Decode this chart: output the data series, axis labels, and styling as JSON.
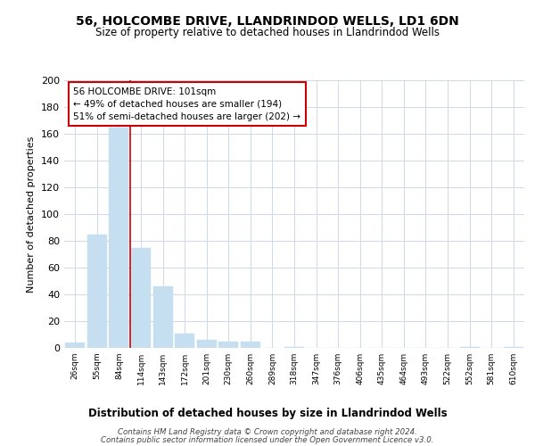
{
  "title": "56, HOLCOMBE DRIVE, LLANDRINDOD WELLS, LD1 6DN",
  "subtitle": "Size of property relative to detached houses in Llandrindod Wells",
  "xlabel": "Distribution of detached houses by size in Llandrindod Wells",
  "ylabel": "Number of detached properties",
  "bar_labels": [
    "26sqm",
    "55sqm",
    "84sqm",
    "114sqm",
    "143sqm",
    "172sqm",
    "201sqm",
    "230sqm",
    "260sqm",
    "289sqm",
    "318sqm",
    "347sqm",
    "376sqm",
    "406sqm",
    "435sqm",
    "464sqm",
    "493sqm",
    "522sqm",
    "552sqm",
    "581sqm",
    "610sqm"
  ],
  "bar_values": [
    4,
    85,
    165,
    75,
    46,
    11,
    6,
    5,
    5,
    0,
    1,
    0,
    0,
    0,
    0,
    0,
    0,
    0,
    1,
    0,
    1
  ],
  "bar_color": "#c5dff0",
  "bar_edge_color": "#c5dff0",
  "vline_x": 2.5,
  "vline_color": "#cc0000",
  "annotation_title": "56 HOLCOMBE DRIVE: 101sqm",
  "annotation_line1": "← 49% of detached houses are smaller (194)",
  "annotation_line2": "51% of semi-detached houses are larger (202) →",
  "annotation_box_color": "#ffffff",
  "annotation_border_color": "#cc0000",
  "ylim": [
    0,
    200
  ],
  "yticks": [
    0,
    20,
    40,
    60,
    80,
    100,
    120,
    140,
    160,
    180,
    200
  ],
  "footer_line1": "Contains HM Land Registry data © Crown copyright and database right 2024.",
  "footer_line2": "Contains public sector information licensed under the Open Government Licence v3.0.",
  "background_color": "#ffffff",
  "grid_color": "#d0d8e8"
}
